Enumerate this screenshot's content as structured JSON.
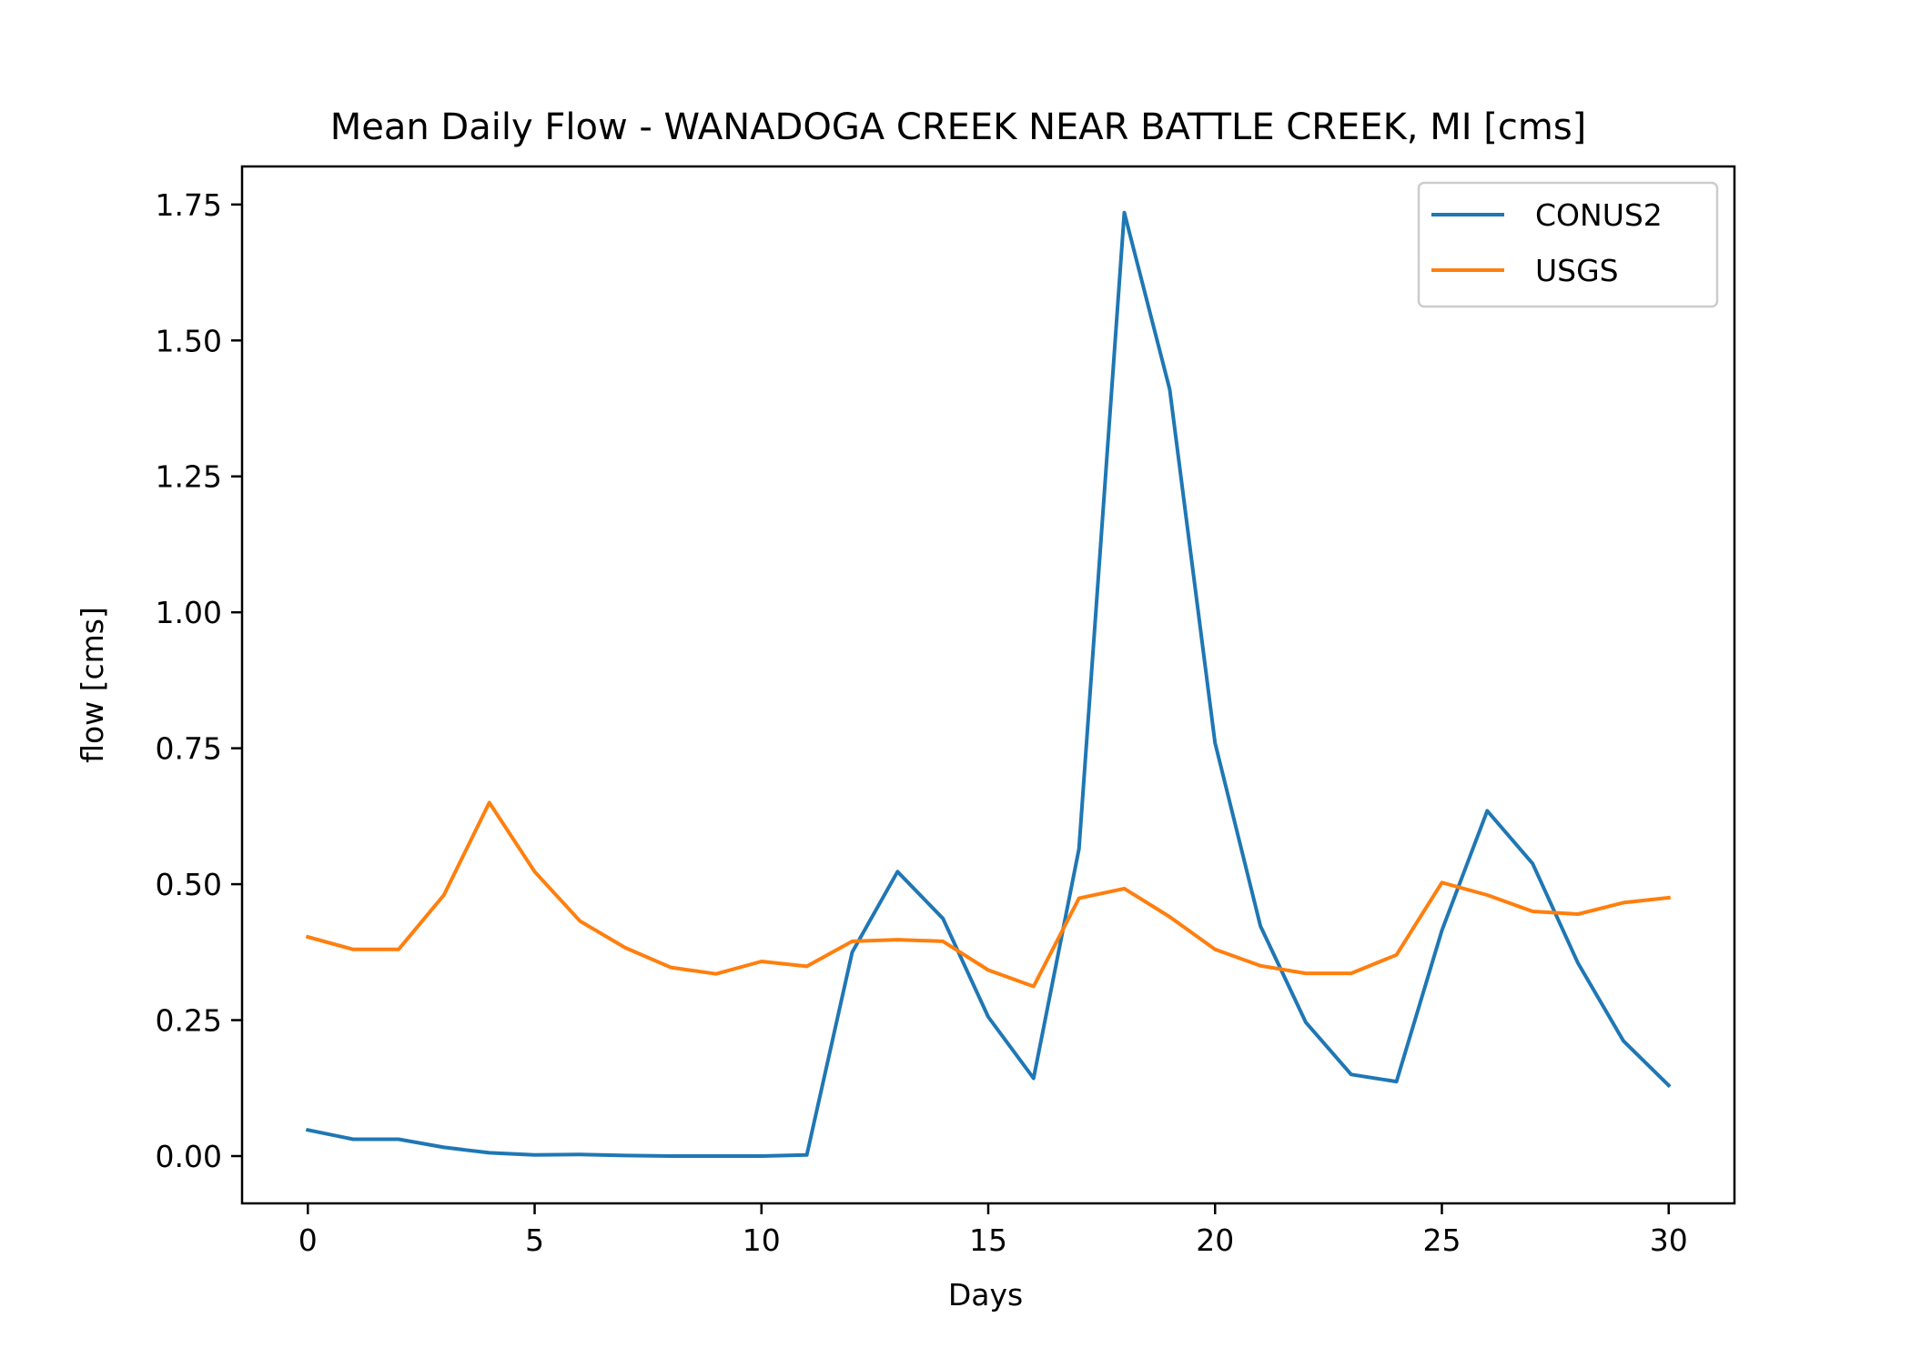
{
  "chart_data": {
    "type": "line",
    "title": "Mean Daily Flow - WANADOGA CREEK NEAR BATTLE CREEK, MI [cms]",
    "xlabel": "Days",
    "ylabel": "flow [cms]",
    "xlim": [
      -1.45,
      31.45
    ],
    "ylim": [
      -0.087,
      1.82
    ],
    "x_ticks": [
      0,
      5,
      10,
      15,
      20,
      25,
      30
    ],
    "x_tick_labels": [
      "0",
      "5",
      "10",
      "15",
      "20",
      "25",
      "30"
    ],
    "y_ticks": [
      0,
      0.25,
      0.5,
      0.75,
      1.0,
      1.25,
      1.5,
      1.75
    ],
    "y_tick_labels": [
      "0.00",
      "0.25",
      "0.50",
      "0.75",
      "1.00",
      "1.25",
      "1.50",
      "1.75"
    ],
    "grid": false,
    "legend_position": "top-right",
    "x": [
      0,
      1,
      2,
      3,
      4,
      5,
      6,
      7,
      8,
      9,
      10,
      11,
      12,
      13,
      14,
      15,
      16,
      17,
      18,
      19,
      20,
      21,
      22,
      23,
      24,
      25,
      26,
      27,
      28,
      29,
      30
    ],
    "series": [
      {
        "name": "CONUS2",
        "color": "#1f77b4",
        "values": [
          0.048,
          0.031,
          0.031,
          0.016,
          0.006,
          0.002,
          0.003,
          0.001,
          0.0,
          0.0,
          0.0,
          0.002,
          0.375,
          0.523,
          0.437,
          0.256,
          0.143,
          0.565,
          1.735,
          1.41,
          0.76,
          0.423,
          0.246,
          0.15,
          0.137,
          0.415,
          0.635,
          0.538,
          0.355,
          0.212,
          0.13
        ]
      },
      {
        "name": "USGS",
        "color": "#ff7f0e",
        "values": [
          0.403,
          0.38,
          0.38,
          0.48,
          0.65,
          0.523,
          0.432,
          0.383,
          0.347,
          0.335,
          0.358,
          0.349,
          0.395,
          0.398,
          0.395,
          0.342,
          0.312,
          0.474,
          0.492,
          0.44,
          0.38,
          0.35,
          0.336,
          0.336,
          0.37,
          0.503,
          0.48,
          0.45,
          0.445,
          0.466,
          0.475
        ]
      }
    ]
  }
}
